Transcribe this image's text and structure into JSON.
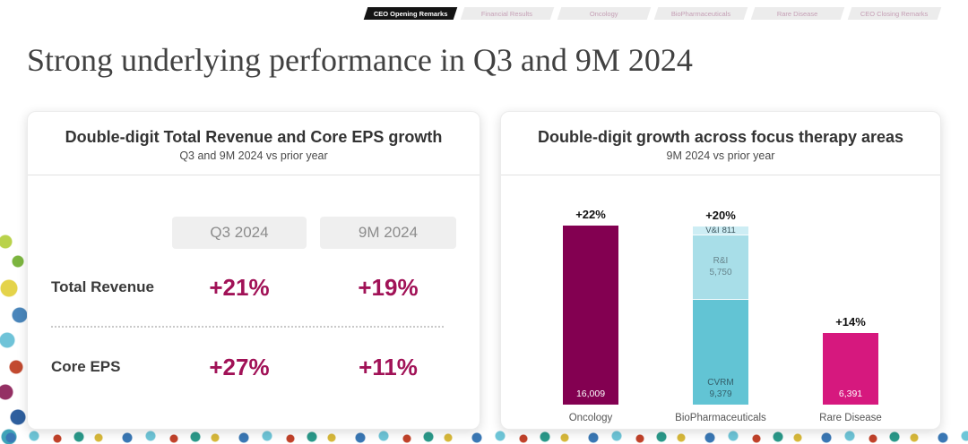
{
  "slide": {
    "title": "Strong underlying performance in Q3 and 9M 2024"
  },
  "nav": {
    "tabs": [
      {
        "label": "CEO Opening Remarks",
        "active": true
      },
      {
        "label": "Financial Results",
        "active": false
      },
      {
        "label": "Oncology",
        "active": false
      },
      {
        "label": "BioPharmaceuticals",
        "active": false
      },
      {
        "label": "Rare Disease",
        "active": false
      },
      {
        "label": "CEO Closing Remarks",
        "active": false
      }
    ]
  },
  "colors": {
    "nav_active_bg": "#141414",
    "value_text_magenta": "#A11257",
    "oncology_bar": "#830051",
    "cvrm_bar": "#62C4D4",
    "ri_bar": "#A8DEE8",
    "vi_bar": "#CDEDF4",
    "rare_disease_bar": "#D6187E"
  },
  "chart_data": [
    {
      "type": "table",
      "title": "Double-digit Total Revenue and Core EPS growth",
      "subtitle": "Q3 and 9M 2024 vs prior year",
      "columns": [
        "Q3 2024",
        "9M 2024"
      ],
      "rows": [
        {
          "label": "Total Revenue",
          "values": [
            "+21%",
            "+19%"
          ]
        },
        {
          "label": "Core EPS",
          "values": [
            "+27%",
            "+11%"
          ]
        }
      ]
    },
    {
      "type": "bar",
      "stacked": true,
      "title": "Double-digit growth across focus therapy areas",
      "subtitle": "9M 2024 vs prior year",
      "ylim": [
        0,
        16009
      ],
      "grid": false,
      "legend": "none",
      "bars": [
        {
          "category": "Oncology",
          "growth": "+22%",
          "segments": [
            {
              "name": "",
              "value": 16009,
              "value_label": "16,009",
              "color": "#830051"
            }
          ]
        },
        {
          "category": "BioPharmaceuticals",
          "growth": "+20%",
          "segments": [
            {
              "name": "CVRM",
              "value": 9379,
              "value_label": "9,379",
              "color": "#62C4D4"
            },
            {
              "name": "R&I",
              "value": 5750,
              "value_label": "5,750",
              "color": "#A8DEE8"
            },
            {
              "name": "V&I",
              "value": 811,
              "value_label": "811",
              "color": "#CDEDF4"
            }
          ]
        },
        {
          "category": "Rare Disease",
          "growth": "+14%",
          "segments": [
            {
              "name": "",
              "value": 6391,
              "value_label": "6,391",
              "color": "#D6187E"
            }
          ]
        }
      ]
    }
  ]
}
